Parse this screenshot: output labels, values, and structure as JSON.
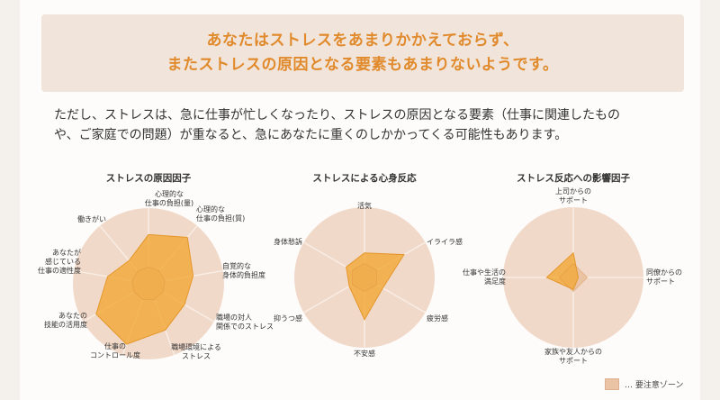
{
  "headline": {
    "line1": "あなたはストレスをあまりかかえておらず、",
    "line2": "またストレスの原因となる要素もあまりないようです。"
  },
  "description": {
    "line1": "ただし、ストレスは、急に仕事が忙しくなったり、ストレスの原因となる要素（仕事に関連したもの",
    "line2": "や、ご家庭での問題）が重なると、急にあなたに重くのしかかってくる可能性もあります。"
  },
  "legend": {
    "label": "… 要注意ゾーン"
  },
  "colors": {
    "accent": "#e08a2c",
    "caution_zone": "#f1d9c9",
    "data_fill": "#f2a93b",
    "data_stroke": "#e4962a",
    "inner_zone": "#e9c3a4"
  },
  "chart_data": [
    {
      "type": "radar",
      "title": "ストレスの原因因子",
      "axes": [
        [
          "心理的な",
          "仕事の負担(量)"
        ],
        [
          "心理的な",
          "仕事の負担(質)"
        ],
        [
          "自覚的な",
          "身体的負担度"
        ],
        [
          "職場の対人",
          "関係でのストレス"
        ],
        [
          "職場環境による",
          "ストレス"
        ],
        [
          "仕事の",
          "コントロール度"
        ],
        [
          "あなたの",
          "技能の活用度"
        ],
        [
          "あなたが",
          "感じている",
          "仕事の適性度"
        ],
        [
          "働きがい"
        ]
      ],
      "values": [
        0.65,
        0.8,
        0.6,
        0.55,
        0.65,
        0.85,
        0.8,
        0.55,
        0.4
      ],
      "inner_zone": 0.22
    },
    {
      "type": "radar",
      "title": "ストレスによる心身反応",
      "axes": [
        [
          "活気"
        ],
        [
          "イライラ感"
        ],
        [
          "疲労感"
        ],
        [
          "不安感"
        ],
        [
          "抑うつ感"
        ],
        [
          "身体愁訴"
        ]
      ],
      "values": [
        0.35,
        0.65,
        0.3,
        0.6,
        0.25,
        0.3
      ],
      "inner_zone": 0.2
    },
    {
      "type": "radar",
      "title": "ストレス反応への影響因子",
      "axes": [
        [
          "上司からの",
          "サポート"
        ],
        [
          "同僚からの",
          "サポート"
        ],
        [
          "家族や友人からの",
          "サポート"
        ],
        [
          "仕事や生活の",
          "満足度"
        ]
      ],
      "values": [
        0.35,
        0.07,
        0.17,
        0.38
      ],
      "inner_zone": 0.2
    }
  ]
}
